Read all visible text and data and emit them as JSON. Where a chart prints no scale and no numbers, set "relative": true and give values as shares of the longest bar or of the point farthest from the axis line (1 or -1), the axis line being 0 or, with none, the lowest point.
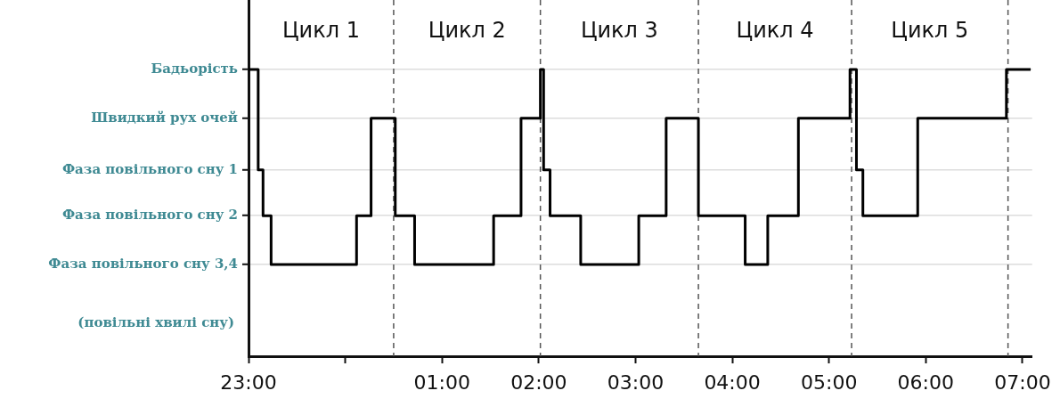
{
  "chart_data": {
    "type": "step",
    "relative": true,
    "x": [
      "--01-01T23:00",
      "--01-01T23:06",
      "--01-01T23:09",
      "--01-01T23:14",
      "--01-02T00:07",
      "--01-02T00:16",
      "--01-02T00:31",
      "--01-02T00:43",
      "--01-02T01:32",
      "--01-02T01:49",
      "--01-02T02:01",
      "--01-02T02:03",
      "--01-02T02:07",
      "--01-02T02:26",
      "--01-02T03:02",
      "--01-02T03:19",
      "--01-02T03:39",
      "--01-02T04:08",
      "--01-02T04:22",
      "--01-02T04:41",
      "--01-02T05:13",
      "--01-02T05:17",
      "--01-02T05:21",
      "--01-02T05:55",
      "--01-02T06:50",
      "--01-02T07:05"
    ],
    "series": [
      {
        "color": "#000000",
        "values": [
          1,
          0.65,
          0.49,
          0.32,
          0.49,
          0.83,
          0.49,
          0.32,
          0.49,
          0.83,
          1,
          0.65,
          0.49,
          0.32,
          0.49,
          0.83,
          0.49,
          0.32,
          0.49,
          0.83,
          1,
          0.65,
          0.49,
          0.83,
          1,
          1
        ]
      }
    ],
    "xlim": [
      "--01-01T23:00",
      "--01-02T07:06"
    ],
    "xticks": [
      {
        "value": "--01-01T23:00",
        "label": "23:00"
      },
      {
        "value": "--01-02T00:00",
        "label": null
      },
      {
        "value": "--01-02T01:00",
        "label": "01:00"
      },
      {
        "value": "--01-02T02:00",
        "label": "02:00"
      },
      {
        "value": "--01-02T03:00",
        "label": "03:00"
      },
      {
        "value": "--01-02T04:00",
        "label": "04:00"
      },
      {
        "value": "--01-02T05:00",
        "label": "05:00"
      },
      {
        "value": "--01-02T06:00",
        "label": "06:00"
      },
      {
        "value": "--01-02T07:00",
        "label": "07:00"
      }
    ],
    "annotations": [
      "Бадьорість",
      "Швидкий рух очей",
      "Фаза повільного сну 1",
      "Фаза повільного сну 2",
      "Фаза повільного сну 3,4",
      "Цикл 1",
      "Цикл 2",
      "Цикл 3",
      "Цикл 4",
      "Цикл 5",
      "(повільні хвилі сну)"
    ],
    "ref_lines": [
      {
        "axis": "x",
        "value": "--01-02T00:30",
        "color": "#555555",
        "line_style": "dashed"
      },
      {
        "axis": "x",
        "value": "--01-02T02:01",
        "color": "#555555",
        "line_style": "dashed"
      },
      {
        "axis": "x",
        "value": "--01-02T03:39",
        "color": "#555555",
        "line_style": "dashed"
      },
      {
        "axis": "x",
        "value": "--01-02T05:14",
        "color": "#555555",
        "line_style": "dashed"
      },
      {
        "axis": "x",
        "value": "--01-02T06:51",
        "color": "#555555",
        "line_style": "dashed"
      }
    ],
    "grid": "y",
    "legend": false,
    "marker": "none",
    "line_style": "solid"
  }
}
